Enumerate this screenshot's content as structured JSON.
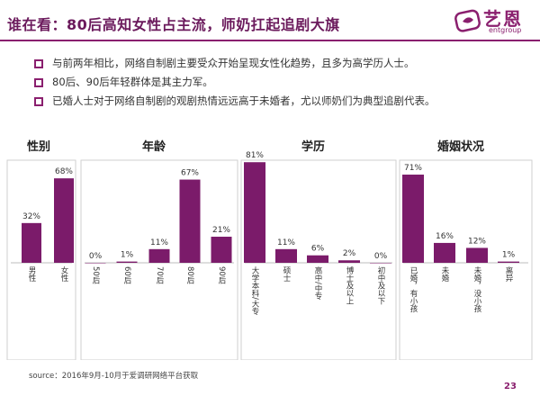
{
  "header": {
    "title": "谁在看：80后高知女性占主流，师奶扛起追剧大旗",
    "logo_brand": "艺恩",
    "logo_sub": "entgroup"
  },
  "bullets": [
    "与前两年相比，网络自制剧主要受众开始呈现女性化趋势，且多为高学历人士。",
    "80后、90后年轻群体是其主力军。",
    "已婚人士对于网络自制剧的观剧热情远远高于未婚者，尤以师奶们为典型追剧代表。"
  ],
  "chart_data": [
    {
      "type": "bar",
      "title": "性别",
      "categories": [
        "男性",
        "女性"
      ],
      "values": [
        32,
        68
      ],
      "value_labels": [
        "32%",
        "68%"
      ],
      "ylim": [
        0,
        100
      ]
    },
    {
      "type": "bar",
      "title": "年龄",
      "categories": [
        "50后",
        "60后",
        "70后",
        "80后",
        "90后"
      ],
      "values": [
        0,
        1,
        11,
        67,
        21
      ],
      "value_labels": [
        "0%",
        "1%",
        "11%",
        "67%",
        "21%"
      ],
      "ylim": [
        0,
        100
      ]
    },
    {
      "type": "bar",
      "title": "学历",
      "categories": [
        "大学本科/大专",
        "硕士",
        "高中/中专",
        "博士及以上",
        "初中及以下"
      ],
      "values": [
        81,
        11,
        6,
        2,
        0
      ],
      "value_labels": [
        "81%",
        "11%",
        "6%",
        "2%",
        "0%"
      ],
      "ylim": [
        0,
        100
      ]
    },
    {
      "type": "bar",
      "title": "婚姻状况",
      "categories": [
        "已婚，有小孩",
        "未婚",
        "未婚，没小孩",
        "离异"
      ],
      "values": [
        71,
        16,
        12,
        1
      ],
      "value_labels": [
        "71%",
        "16%",
        "12%",
        "1%"
      ],
      "ylim": [
        0,
        100
      ]
    }
  ],
  "footer": {
    "source": "source：2016年9月-10月于爱调研网络平台获取",
    "page_number": "23"
  },
  "colors": {
    "bar": "#7b1b6a",
    "accent": "#8a1f6e",
    "panel_border": "#cfcfcf"
  }
}
